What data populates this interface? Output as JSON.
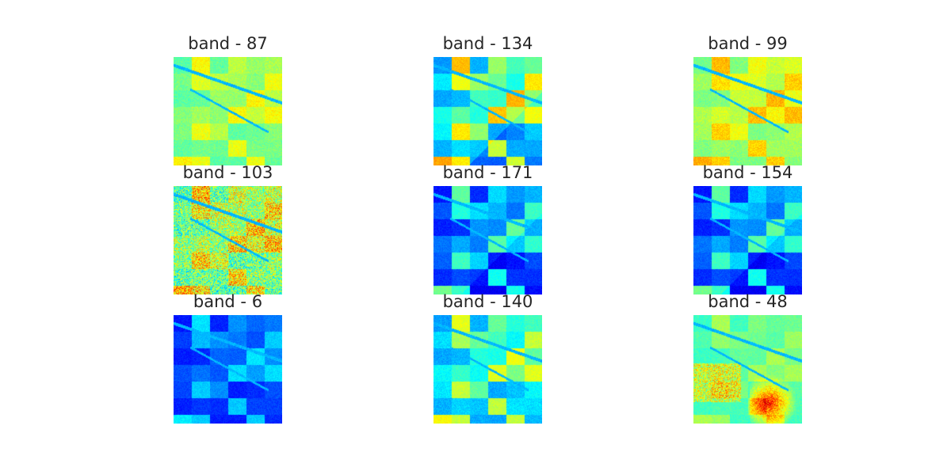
{
  "figure": {
    "colormap": "jet",
    "panels": [
      {
        "title": "band - 87",
        "dominant_tone": "cyan-green",
        "image_description": "aerial hyperspectral band, mostly cyan-green with yellow fields"
      },
      {
        "title": "band - 134",
        "dominant_tone": "blue-yellow",
        "image_description": "aerial hyperspectral band, yellow-green fields on blue background"
      },
      {
        "title": "band - 99",
        "dominant_tone": "green-yellow",
        "image_description": "aerial hyperspectral band, green-yellow with some orange"
      },
      {
        "title": "band - 103",
        "dominant_tone": "noisy-yellow",
        "image_description": "noisy band, yellow-orange with scattered red and blue speckle"
      },
      {
        "title": "band - 171",
        "dominant_tone": "blue-cyan",
        "image_description": "aerial hyperspectral band, cyan fields on deep blue"
      },
      {
        "title": "band - 154",
        "dominant_tone": "blue-cyan",
        "image_description": "aerial hyperspectral band, cyan fields on deep blue"
      },
      {
        "title": "band - 6",
        "dominant_tone": "deep-blue",
        "image_description": "aerial hyperspectral band, mostly dark blue with light blue fields"
      },
      {
        "title": "band - 140",
        "dominant_tone": "cyan-yellow",
        "image_description": "aerial hyperspectral band, cyan and yellow-green"
      },
      {
        "title": "band - 48",
        "dominant_tone": "cyan-red",
        "image_description": "aerial hyperspectral band, cyan with red-orange hot regions"
      }
    ]
  }
}
